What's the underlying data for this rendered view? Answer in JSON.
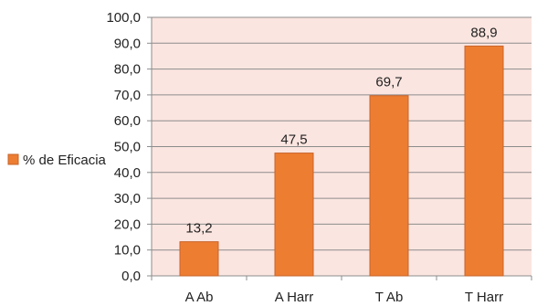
{
  "chart_data": {
    "type": "bar",
    "categories": [
      "A Ab",
      "A Harr",
      "T Ab",
      "T Harr"
    ],
    "series": [
      {
        "name": "% de Eficacia",
        "values": [
          13.2,
          47.5,
          69.7,
          88.9
        ]
      }
    ],
    "data_labels": [
      "13,2",
      "47,5",
      "69,7",
      "88,9"
    ],
    "y_ticks": [
      "0,0",
      "10,0",
      "20,0",
      "30,0",
      "40,0",
      "50,0",
      "60,0",
      "70,0",
      "80,0",
      "90,0",
      "100,0"
    ],
    "ylim": [
      0,
      100
    ],
    "grid": true,
    "legend_position": "left",
    "title": "",
    "xlabel": "",
    "ylabel": "",
    "colors": {
      "bar": "#ED7D31",
      "bar_edge": "#C8642A",
      "plot_bg": "#FBE5E0",
      "grid": "#8C8C8C"
    }
  }
}
